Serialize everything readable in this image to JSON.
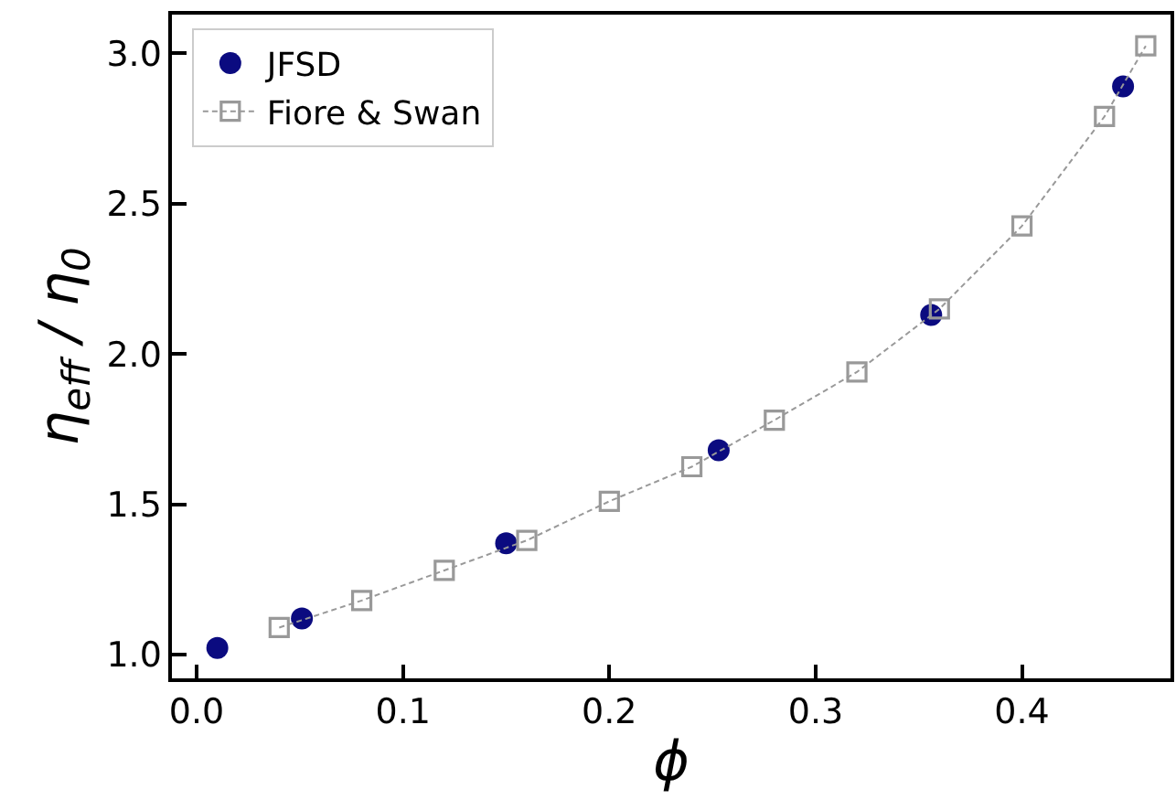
{
  "chart_data": {
    "type": "scatter",
    "xlabel": "ϕ",
    "ylabel": "η$_{eff}$ / η$_{0}$",
    "xlim": [
      -0.012,
      0.472
    ],
    "ylim": [
      0.921,
      3.129
    ],
    "xticks": [
      {
        "value": 0,
        "label": "0.0"
      },
      0.1,
      0.2,
      0.3,
      0.4
    ],
    "yticks": [
      {
        "value": 1,
        "label": "1.0"
      },
      1.5,
      {
        "value": 2,
        "label": "2.0"
      },
      2.5,
      {
        "value": 3,
        "label": "3.0"
      }
    ],
    "grid": false,
    "legend": "top left",
    "series": [
      {
        "name": "JFSD",
        "marker": "circle",
        "color": "#0b0b80",
        "x": [
          0.01,
          0.051,
          0.15,
          0.253,
          0.356,
          0.449
        ],
        "values": [
          1.022,
          1.12,
          1.37,
          1.68,
          2.13,
          2.89
        ]
      },
      {
        "name": "Fiore & Swan",
        "type": "line",
        "marker": "square",
        "line_style": "dashed",
        "color": "#999999",
        "x": [
          0.04,
          0.08,
          0.12,
          0.16,
          0.2,
          0.24,
          0.28,
          0.32,
          0.36,
          0.4,
          0.44,
          0.46
        ],
        "values": [
          1.09,
          1.18,
          1.28,
          1.38,
          1.51,
          1.625,
          1.78,
          1.94,
          2.15,
          2.426,
          2.79,
          3.025
        ]
      }
    ]
  }
}
